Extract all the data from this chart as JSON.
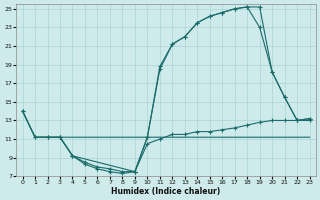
{
  "xlabel": "Humidex (Indice chaleur)",
  "bg_color": "#ceeaea",
  "grid_color": "#aad4d4",
  "line_color": "#1a6b6b",
  "xlim": [
    -0.5,
    23.5
  ],
  "ylim": [
    7,
    25.5
  ],
  "xticks": [
    0,
    1,
    2,
    3,
    4,
    5,
    6,
    7,
    8,
    9,
    10,
    11,
    12,
    13,
    14,
    15,
    16,
    17,
    18,
    19,
    20,
    21,
    22,
    23
  ],
  "yticks": [
    7,
    9,
    11,
    13,
    15,
    17,
    19,
    21,
    23,
    25
  ],
  "line1_x": [
    0,
    1,
    2,
    3,
    4,
    5,
    6,
    7,
    8,
    9,
    10,
    11,
    12,
    13,
    14,
    15,
    16,
    17,
    18,
    19,
    20,
    21,
    22,
    23
  ],
  "line1_y": [
    14,
    11.2,
    11.2,
    11.2,
    9.2,
    8.3,
    7.8,
    7.5,
    7.3,
    7.5,
    11.2,
    18.5,
    21.2,
    22.0,
    23.5,
    24.2,
    24.6,
    25.0,
    25.2,
    25.2,
    18.2,
    15.5,
    13.0,
    13.2
  ],
  "line2_x": [
    0,
    1,
    2,
    3,
    10,
    11,
    12,
    13,
    14,
    15,
    16,
    17,
    18,
    19,
    20,
    21,
    22,
    23
  ],
  "line2_y": [
    14,
    11.2,
    11.2,
    11.2,
    11.2,
    11.2,
    11.2,
    11.2,
    11.2,
    11.2,
    11.2,
    11.2,
    11.2,
    11.2,
    11.2,
    11.2,
    11.2,
    11.2
  ],
  "line3_x": [
    0,
    1,
    2,
    3,
    4,
    9,
    10,
    11,
    12,
    13,
    14,
    15,
    16,
    17,
    18,
    19,
    20,
    21,
    22,
    23
  ],
  "line3_y": [
    14,
    11.2,
    11.2,
    11.2,
    9.2,
    7.5,
    11.2,
    18.8,
    21.2,
    22.0,
    23.5,
    24.2,
    24.6,
    25.0,
    25.2,
    23.0,
    18.2,
    15.5,
    13.0,
    13.2
  ],
  "line4_x": [
    3,
    4,
    5,
    6,
    7,
    8,
    9,
    10,
    11,
    12,
    13,
    14,
    15,
    16,
    17,
    18,
    19,
    20,
    21,
    22,
    23
  ],
  "line4_y": [
    11.2,
    9.2,
    8.5,
    8.0,
    7.8,
    7.5,
    7.5,
    10.5,
    11.0,
    11.5,
    11.5,
    11.8,
    11.8,
    12.0,
    12.2,
    12.5,
    12.8,
    13.0,
    13.0,
    13.0,
    13.0
  ]
}
